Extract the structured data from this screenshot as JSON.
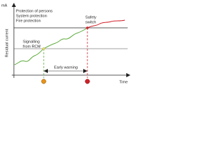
{
  "axes": {
    "y_unit": "mA",
    "y_label": "Residual current",
    "x_label": "Time"
  },
  "levels": [
    "Protection of persons",
    "System protection",
    "Fire protection"
  ],
  "safety_switch": [
    "Safety",
    "switch"
  ],
  "signalling": [
    "Signalling",
    "from RCM"
  ],
  "early_warning": "Early warning"
}
